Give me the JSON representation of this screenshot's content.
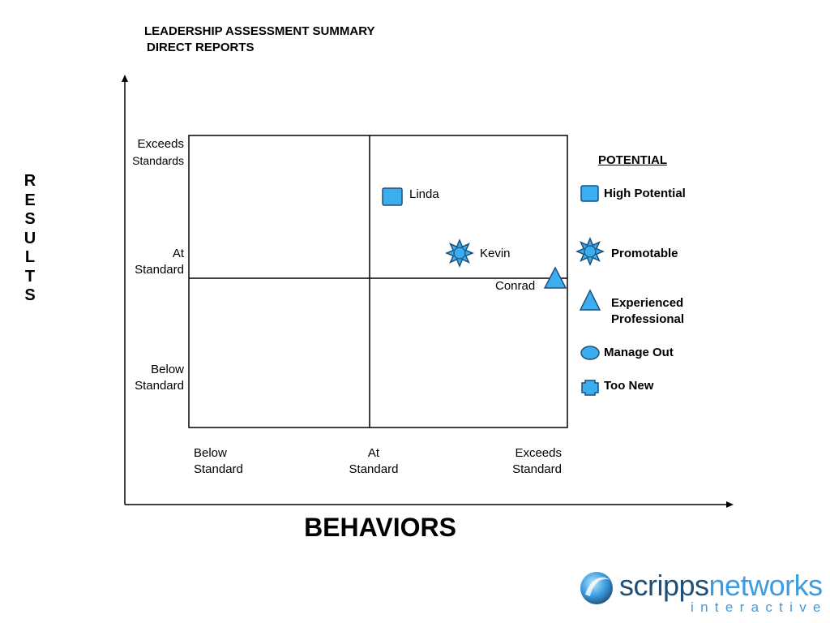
{
  "header": {
    "title_line1": "LEADERSHIP ASSESSMENT SUMMARY",
    "title_line2": "DIRECT REPORTS"
  },
  "axes": {
    "y_label_letters": [
      "R",
      "E",
      "S",
      "U",
      "L",
      "T",
      "S"
    ],
    "x_label": "BEHAVIORS"
  },
  "row_labels": {
    "exceeds": [
      "Exceeds",
      "Standards"
    ],
    "at": [
      "At",
      "Standard"
    ],
    "below": [
      "Below",
      "Standard"
    ]
  },
  "column_labels": {
    "below": [
      "Below",
      "Standard"
    ],
    "at": [
      "At",
      "Standard"
    ],
    "exceeds": [
      "Exceeds",
      "Standard"
    ]
  },
  "people": [
    {
      "name": "Linda",
      "potential": "High Potential"
    },
    {
      "name": "Kevin",
      "potential": "Promotable"
    },
    {
      "name": "Conrad",
      "potential": "Experienced Professional"
    }
  ],
  "legend": {
    "title": "POTENTIAL",
    "items": [
      {
        "label": "High Potential",
        "icon": "square-icon"
      },
      {
        "label": "Promotable",
        "icon": "starburst-icon"
      },
      {
        "label_line1": "Experienced",
        "label_line2": "Professional",
        "icon": "triangle-icon"
      },
      {
        "label": "Manage Out",
        "icon": "ellipse-icon"
      },
      {
        "label": "Too New",
        "icon": "cross-icon"
      }
    ]
  },
  "colors": {
    "marker_fill": "#3aaeef",
    "marker_stroke": "#1f4e79",
    "logo_dark": "#1f4e79",
    "logo_light": "#3b9de0"
  },
  "logo": {
    "word1": "scripps",
    "word2": "networks",
    "sub": "interactive"
  }
}
